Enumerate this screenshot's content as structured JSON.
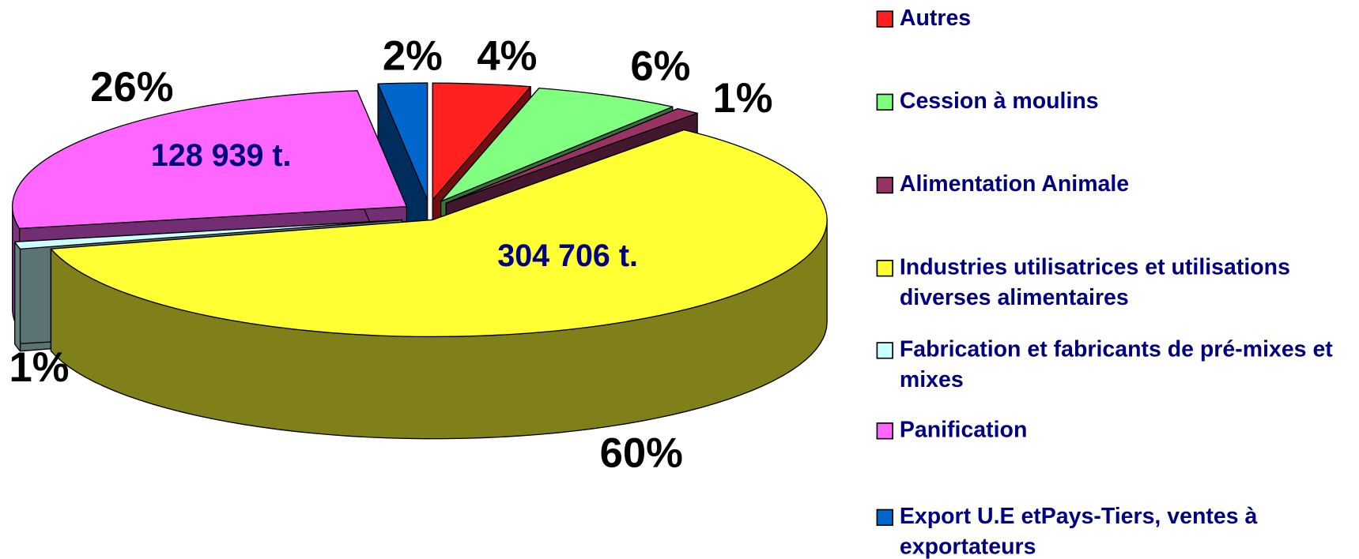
{
  "chart_data": {
    "type": "pie3d",
    "categories": [
      "Autres",
      "Cession à moulins",
      "Alimentation Animale",
      "Industries utilisatrices et utilisations diverses alimentaires",
      "Fabrication et fabricants de pré-mixes et mixes",
      "Panification",
      "Export U.E etPays-Tiers, ventes à exportateurs"
    ],
    "values": [
      4,
      6,
      1,
      60,
      1,
      26,
      2
    ],
    "value_labels": [
      "4%",
      "6%",
      "1%",
      "60%",
      "1%",
      "26%",
      "2%"
    ],
    "colors": [
      "#ff2020",
      "#80ff80",
      "#993366",
      "#ffff33",
      "#ccffff",
      "#ff66ff",
      "#0066cc"
    ],
    "annotations": [
      "304 706 t.",
      "128 939 t."
    ],
    "legend": "right"
  }
}
